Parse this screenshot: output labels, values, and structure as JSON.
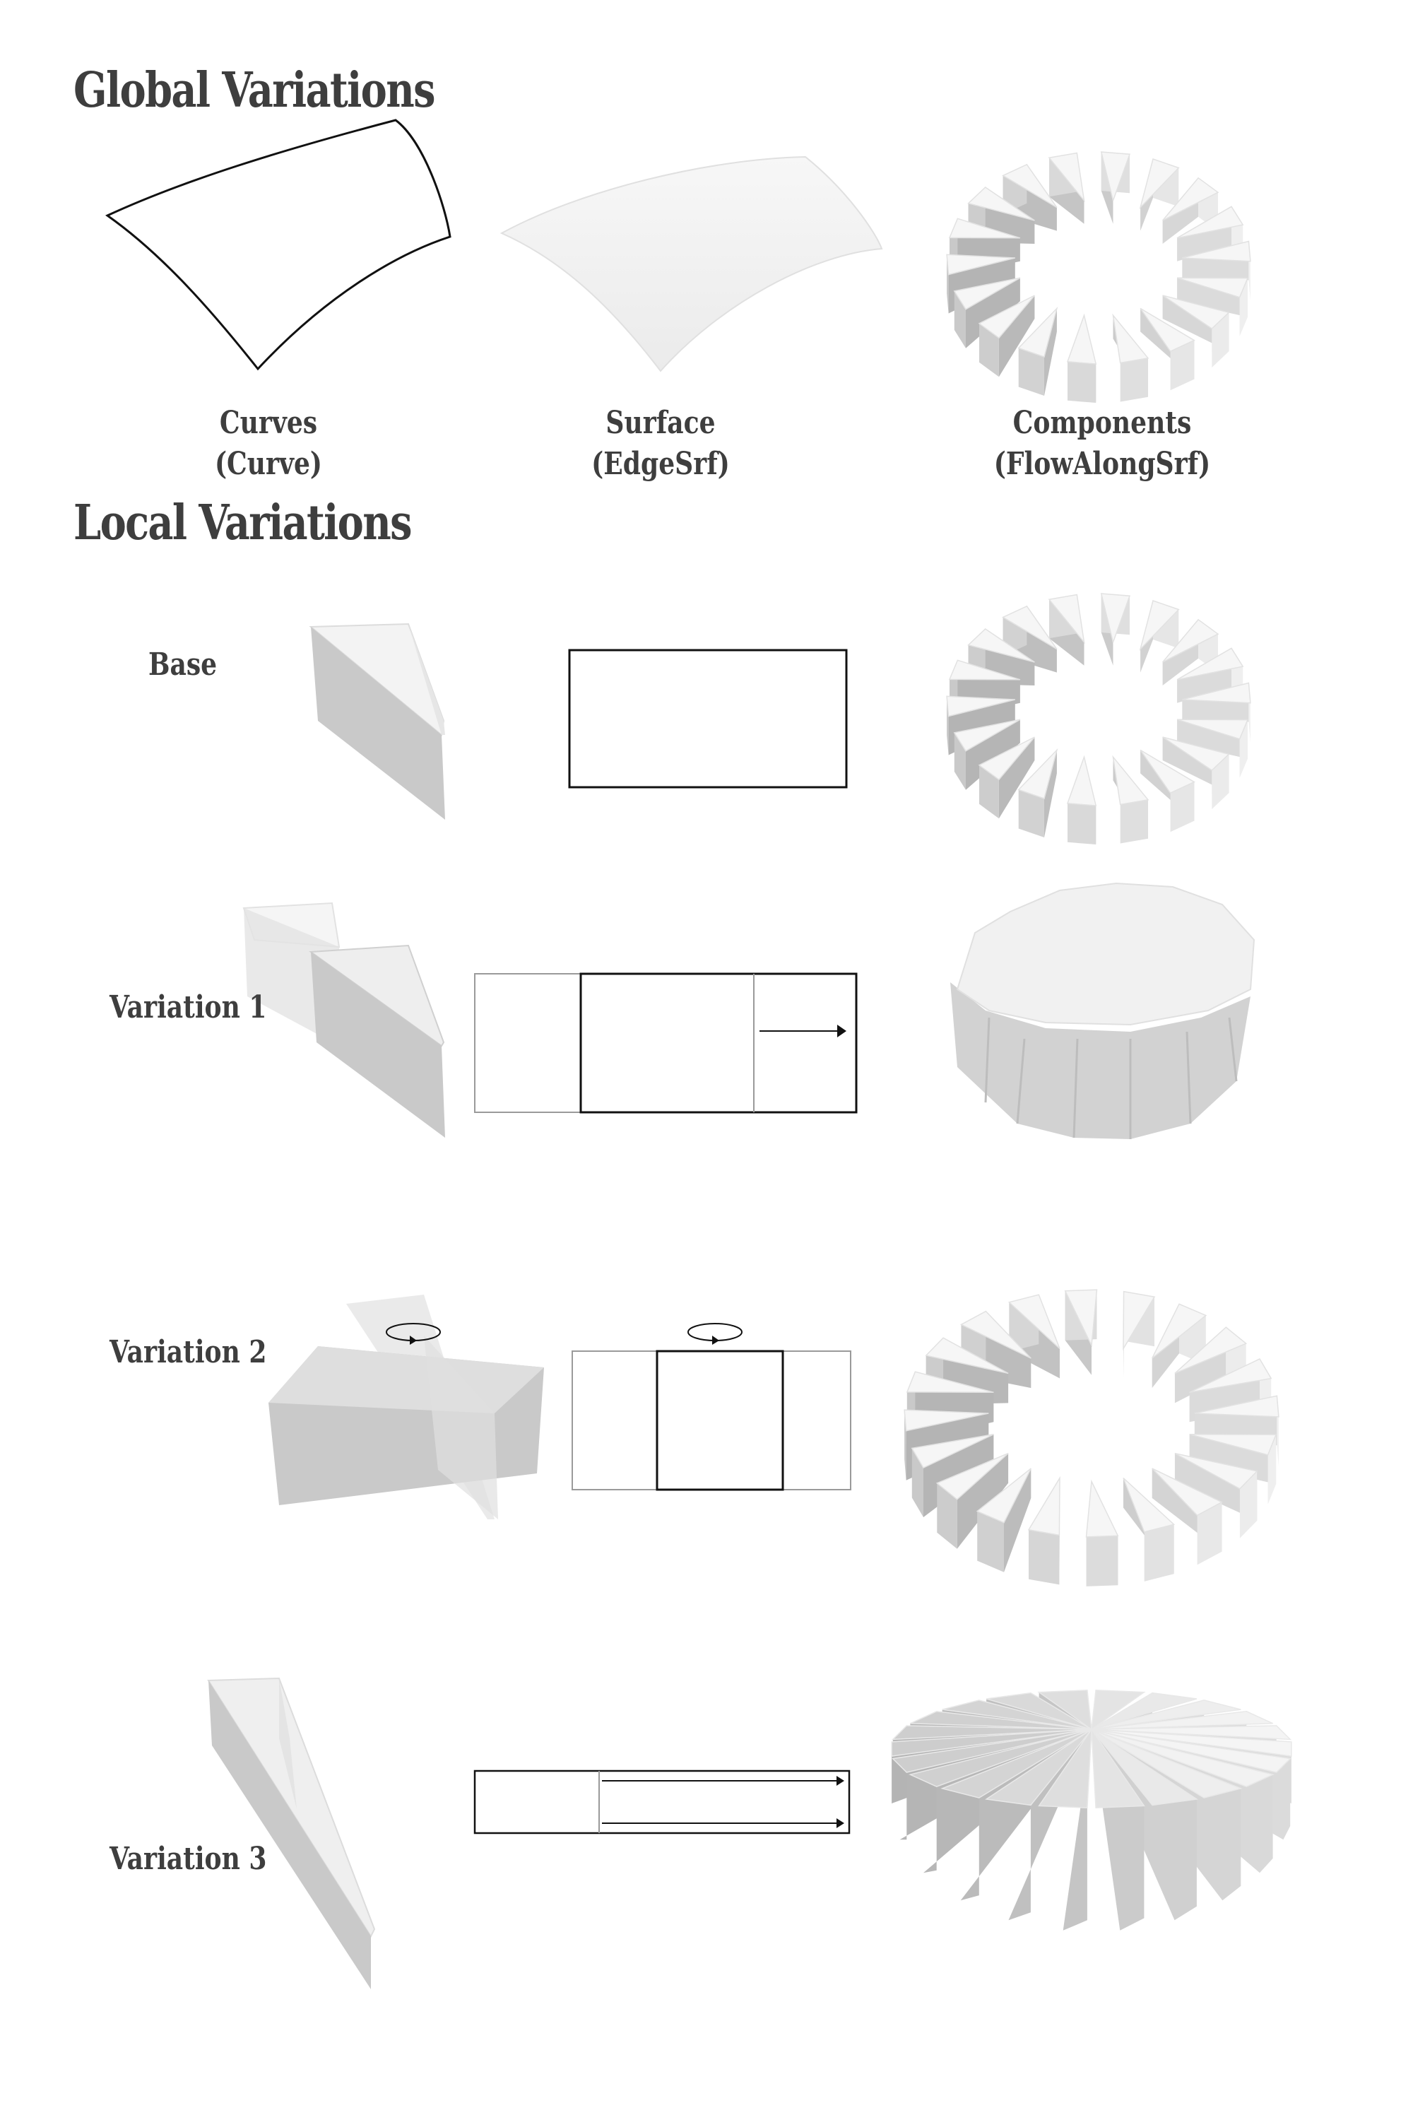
{
  "global": {
    "title": "Global Variations",
    "items": [
      {
        "title": "Curves",
        "subtitle": "(Curve)"
      },
      {
        "title": "Surface",
        "subtitle": "(EdgeSrf)"
      },
      {
        "title": "Components",
        "subtitle": "(FlowAlongSrf)"
      }
    ]
  },
  "local": {
    "title": "Local Variations",
    "rows": [
      {
        "label": "Base"
      },
      {
        "label": "Variation 1"
      },
      {
        "label": "Variation 2"
      },
      {
        "label": "Variation 3"
      }
    ]
  },
  "colors": {
    "text": "#3e3e3e",
    "face_light": "#f2f2f2",
    "face_mid": "#d6d6d6",
    "face_dark": "#c4c4c4",
    "line": "#111111",
    "line_light": "#9a9a9a"
  }
}
